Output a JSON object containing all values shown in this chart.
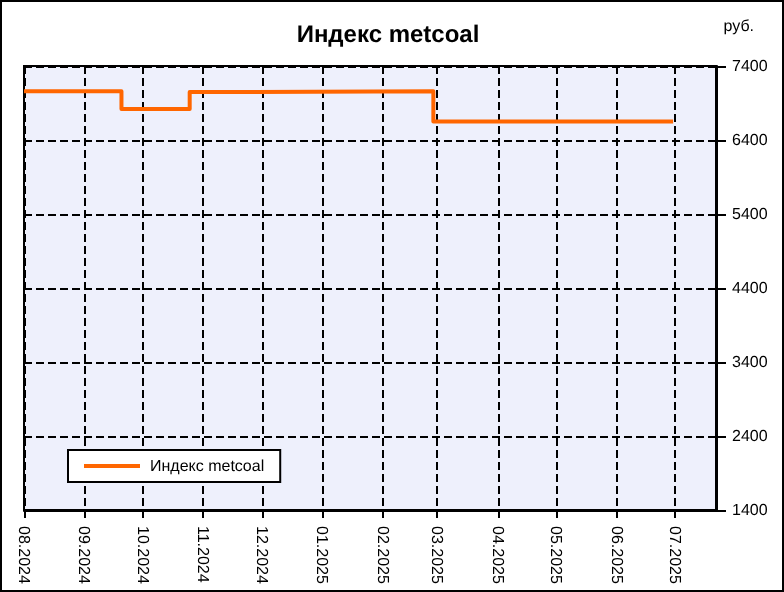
{
  "chart_data": {
    "type": "step",
    "title": "Индекс metcoal",
    "ylabel": "руб.",
    "x": [
      "2024-08-01",
      "2024-09-20",
      "2024-10-25",
      "2024-11-25",
      "2025-02-27",
      "2025-06-30"
    ],
    "series": [
      {
        "name": "Индекс metcoal",
        "color": "#ff6600",
        "values": [
          7060,
          6820,
          7050,
          7060,
          6650,
          6650
        ]
      }
    ],
    "xlim": [
      "2024-08-01",
      "2025-07-22"
    ],
    "xticks": [
      {
        "value": "2024-08-01",
        "label": "08.2024"
      },
      {
        "value": "2024-09-01",
        "label": "09.2024"
      },
      {
        "value": "2024-10-01",
        "label": "10.2024"
      },
      {
        "value": "2024-11-01",
        "label": "11.2024"
      },
      {
        "value": "2024-12-01",
        "label": "12.2024"
      },
      {
        "value": "2025-01-01",
        "label": "01.2025"
      },
      {
        "value": "2025-02-01",
        "label": "02.2025"
      },
      {
        "value": "2025-03-01",
        "label": "03.2025"
      },
      {
        "value": "2025-04-01",
        "label": "04.2025"
      },
      {
        "value": "2025-05-01",
        "label": "05.2025"
      },
      {
        "value": "2025-06-01",
        "label": "06.2025"
      },
      {
        "value": "2025-07-01",
        "label": "07.2025"
      }
    ],
    "ylim": [
      1400,
      7400
    ],
    "yticks": [
      1400,
      2400,
      3400,
      4400,
      5400,
      6400,
      7400
    ],
    "grid": true,
    "legend": "bottom left",
    "line_style": "solid",
    "marker": "none"
  }
}
